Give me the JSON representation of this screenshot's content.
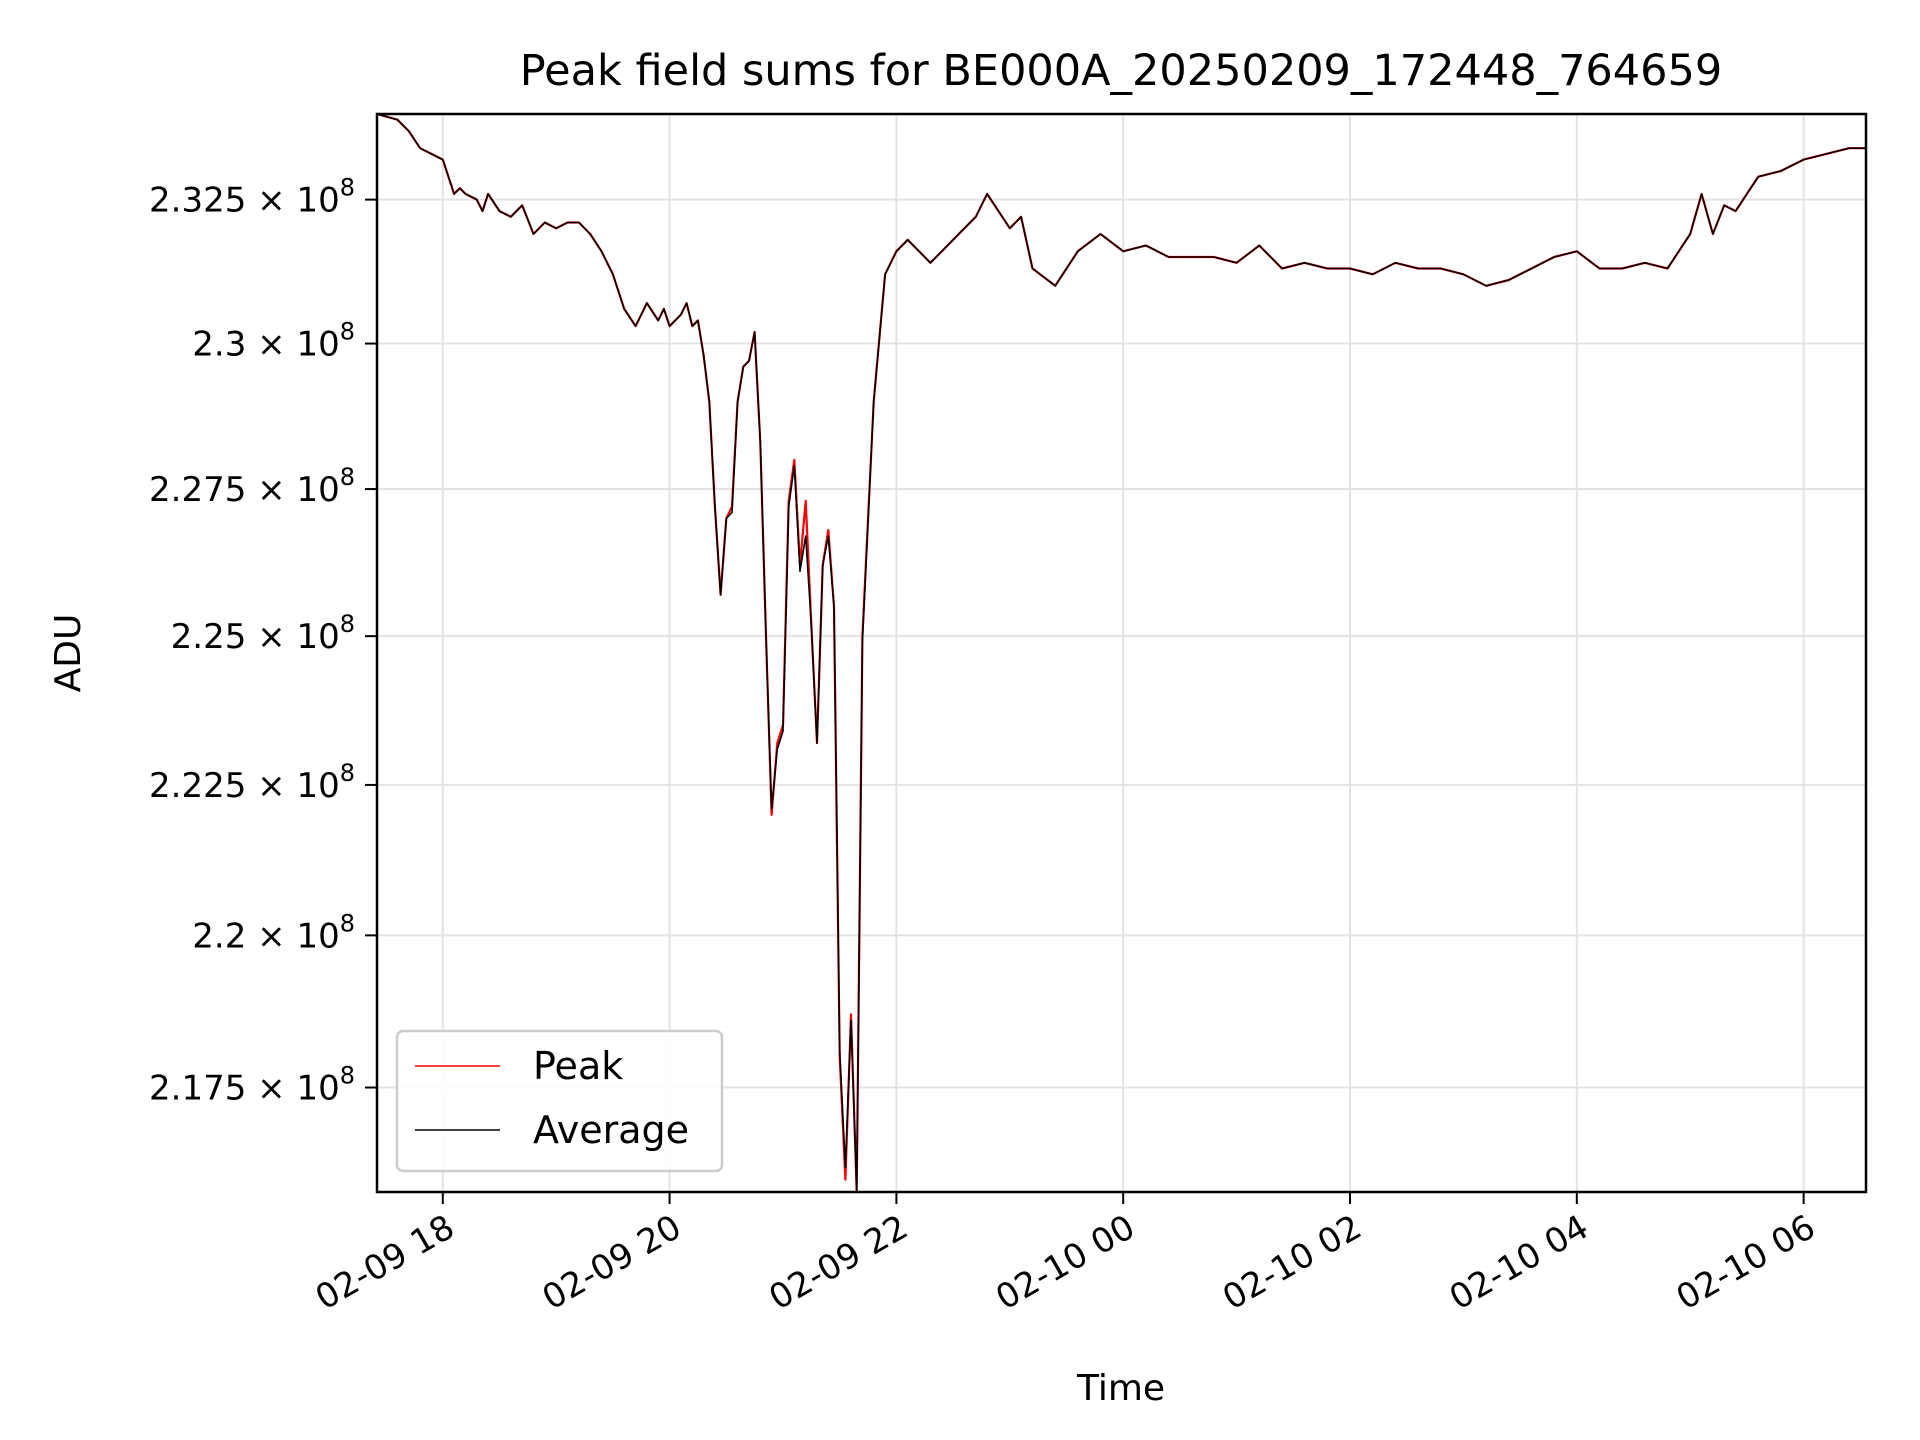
{
  "chart_data": {
    "type": "line",
    "title": "Peak field sums for BE000A_20250209_172448_764659",
    "xlabel": "Time",
    "ylabel": "ADU",
    "x_ticks": [
      "02-09 18",
      "02-09 20",
      "02-09 22",
      "02-10 00",
      "02-10 02",
      "02-10 04",
      "02-10 06"
    ],
    "x_tick_hours": [
      18,
      20,
      22,
      24,
      26,
      28,
      30
    ],
    "xlim_hours": [
      17.42,
      30.55
    ],
    "y_ticks": [
      {
        "value": 232500000.0,
        "mantissa": "2.325",
        "times": "×",
        "base": "10",
        "exponent": "8"
      },
      {
        "value": 230000000.0,
        "mantissa": "2.3",
        "times": "×",
        "base": "10",
        "exponent": "8"
      },
      {
        "value": 227500000.0,
        "mantissa": "2.275",
        "times": "×",
        "base": "10",
        "exponent": "8"
      },
      {
        "value": 225000000.0,
        "mantissa": "2.25",
        "times": "×",
        "base": "10",
        "exponent": "8"
      },
      {
        "value": 222500000.0,
        "mantissa": "2.225",
        "times": "×",
        "base": "10",
        "exponent": "8"
      },
      {
        "value": 220000000.0,
        "mantissa": "2.2",
        "times": "×",
        "base": "10",
        "exponent": "8"
      },
      {
        "value": 217500000.0,
        "mantissa": "2.175",
        "times": "×",
        "base": "10",
        "exponent": "8"
      }
    ],
    "ylim": [
      215800000.0,
      234000000.0
    ],
    "y_scale": "log",
    "grid": true,
    "legend_position": "lower-left",
    "series": [
      {
        "name": "Peak",
        "color": "#ff0000",
        "x_hours": [
          17.42,
          17.6,
          17.7,
          17.8,
          17.9,
          18.0,
          18.1,
          18.15,
          18.2,
          18.3,
          18.35,
          18.4,
          18.5,
          18.6,
          18.7,
          18.8,
          18.9,
          19.0,
          19.1,
          19.2,
          19.3,
          19.4,
          19.5,
          19.6,
          19.7,
          19.8,
          19.9,
          19.95,
          20.0,
          20.05,
          20.1,
          20.15,
          20.2,
          20.25,
          20.3,
          20.35,
          20.4,
          20.45,
          20.5,
          20.55,
          20.6,
          20.65,
          20.7,
          20.75,
          20.8,
          20.85,
          20.9,
          20.95,
          21.0,
          21.05,
          21.1,
          21.15,
          21.2,
          21.25,
          21.3,
          21.35,
          21.4,
          21.45,
          21.5,
          21.55,
          21.6,
          21.65,
          21.7,
          21.8,
          21.9,
          22.0,
          22.1,
          22.2,
          22.3,
          22.4,
          22.5,
          22.6,
          22.7,
          22.8,
          22.9,
          23.0,
          23.1,
          23.2,
          23.4,
          23.6,
          23.8,
          24.0,
          24.2,
          24.4,
          24.6,
          24.8,
          25.0,
          25.2,
          25.4,
          25.6,
          25.8,
          26.0,
          26.2,
          26.4,
          26.6,
          26.8,
          27.0,
          27.2,
          27.4,
          27.6,
          27.8,
          28.0,
          28.2,
          28.4,
          28.6,
          28.8,
          29.0,
          29.1,
          29.2,
          29.3,
          29.4,
          29.5,
          29.6,
          29.8,
          30.0,
          30.2,
          30.4,
          30.55
        ],
        "values": [
          234000000.0,
          233900000.0,
          233700000.0,
          233400000.0,
          233300000.0,
          233200000.0,
          232600000.0,
          232700000.0,
          232600000.0,
          232500000.0,
          232300000.0,
          232600000.0,
          232300000.0,
          232200000.0,
          232400000.0,
          231900000.0,
          232100000.0,
          232000000.0,
          232100000.0,
          232100000.0,
          231900000.0,
          231600000.0,
          231200000.0,
          230600000.0,
          230300000.0,
          230700000.0,
          230400000.0,
          230600000.0,
          230300000.0,
          230400000.0,
          230500000.0,
          230700000.0,
          230300000.0,
          230400000.0,
          229800000.0,
          229000000.0,
          227200000.0,
          225700000.0,
          227000000.0,
          227200000.0,
          229000000.0,
          229600000.0,
          229700000.0,
          230200000.0,
          228300000.0,
          225000000.0,
          222000000.0,
          223200000.0,
          223500000.0,
          227300000.0,
          228000000.0,
          226200000.0,
          227300000.0,
          225200000.0,
          223200000.0,
          226200000.0,
          226800000.0,
          225500000.0,
          218000000.0,
          216000000.0,
          218700000.0,
          215800000.0,
          225000000.0,
          229000000.0,
          231200000.0,
          231600000.0,
          231800000.0,
          231600000.0,
          231400000.0,
          231600000.0,
          231800000.0,
          232000000.0,
          232200000.0,
          232600000.0,
          232300000.0,
          232000000.0,
          232200000.0,
          231300000.0,
          231000000.0,
          231600000.0,
          231900000.0,
          231600000.0,
          231700000.0,
          231500000.0,
          231500000.0,
          231500000.0,
          231400000.0,
          231700000.0,
          231300000.0,
          231400000.0,
          231300000.0,
          231300000.0,
          231200000.0,
          231400000.0,
          231300000.0,
          231300000.0,
          231200000.0,
          231000000.0,
          231100000.0,
          231300000.0,
          231500000.0,
          231600000.0,
          231300000.0,
          231300000.0,
          231400000.0,
          231300000.0,
          231900000.0,
          232600000.0,
          231900000.0,
          232400000.0,
          232300000.0,
          232600000.0,
          232900000.0,
          233000000.0,
          233200000.0,
          233300000.0,
          233400000.0,
          233400000.0
        ]
      },
      {
        "name": "Average",
        "color": "#000000",
        "x_hours": [
          17.42,
          17.6,
          17.7,
          17.8,
          17.9,
          18.0,
          18.1,
          18.15,
          18.2,
          18.3,
          18.35,
          18.4,
          18.5,
          18.6,
          18.7,
          18.8,
          18.9,
          19.0,
          19.1,
          19.2,
          19.3,
          19.4,
          19.5,
          19.6,
          19.7,
          19.8,
          19.9,
          19.95,
          20.0,
          20.05,
          20.1,
          20.15,
          20.2,
          20.25,
          20.3,
          20.35,
          20.4,
          20.45,
          20.5,
          20.55,
          20.6,
          20.65,
          20.7,
          20.75,
          20.8,
          20.85,
          20.9,
          20.95,
          21.0,
          21.05,
          21.1,
          21.15,
          21.2,
          21.25,
          21.3,
          21.35,
          21.4,
          21.45,
          21.5,
          21.55,
          21.6,
          21.65,
          21.7,
          21.8,
          21.9,
          22.0,
          22.1,
          22.2,
          22.3,
          22.4,
          22.5,
          22.6,
          22.7,
          22.8,
          22.9,
          23.0,
          23.1,
          23.2,
          23.4,
          23.6,
          23.8,
          24.0,
          24.2,
          24.4,
          24.6,
          24.8,
          25.0,
          25.2,
          25.4,
          25.6,
          25.8,
          26.0,
          26.2,
          26.4,
          26.6,
          26.8,
          27.0,
          27.2,
          27.4,
          27.6,
          27.8,
          28.0,
          28.2,
          28.4,
          28.6,
          28.8,
          29.0,
          29.1,
          29.2,
          29.3,
          29.4,
          29.5,
          29.6,
          29.8,
          30.0,
          30.2,
          30.4,
          30.55
        ],
        "values": [
          234000000.0,
          233900000.0,
          233700000.0,
          233400000.0,
          233300000.0,
          233200000.0,
          232600000.0,
          232700000.0,
          232600000.0,
          232500000.0,
          232300000.0,
          232600000.0,
          232300000.0,
          232200000.0,
          232400000.0,
          231900000.0,
          232100000.0,
          232000000.0,
          232100000.0,
          232100000.0,
          231900000.0,
          231600000.0,
          231200000.0,
          230600000.0,
          230300000.0,
          230700000.0,
          230400000.0,
          230600000.0,
          230300000.0,
          230400000.0,
          230500000.0,
          230700000.0,
          230300000.0,
          230400000.0,
          229800000.0,
          229000000.0,
          227200000.0,
          225700000.0,
          227000000.0,
          227100000.0,
          229000000.0,
          229600000.0,
          229700000.0,
          230200000.0,
          228300000.0,
          225000000.0,
          222100000.0,
          223100000.0,
          223400000.0,
          227200000.0,
          227900000.0,
          226100000.0,
          226700000.0,
          225200000.0,
          223200000.0,
          226200000.0,
          226700000.0,
          225500000.0,
          218100000.0,
          216200000.0,
          218600000.0,
          215800000.0,
          224900000.0,
          229000000.0,
          231200000.0,
          231600000.0,
          231800000.0,
          231600000.0,
          231400000.0,
          231600000.0,
          231800000.0,
          232000000.0,
          232200000.0,
          232600000.0,
          232300000.0,
          232000000.0,
          232200000.0,
          231300000.0,
          231000000.0,
          231600000.0,
          231900000.0,
          231600000.0,
          231700000.0,
          231500000.0,
          231500000.0,
          231500000.0,
          231400000.0,
          231700000.0,
          231300000.0,
          231400000.0,
          231300000.0,
          231300000.0,
          231200000.0,
          231400000.0,
          231300000.0,
          231300000.0,
          231200000.0,
          231000000.0,
          231100000.0,
          231300000.0,
          231500000.0,
          231600000.0,
          231300000.0,
          231300000.0,
          231400000.0,
          231300000.0,
          231900000.0,
          232600000.0,
          231900000.0,
          232400000.0,
          232300000.0,
          232600000.0,
          232900000.0,
          233000000.0,
          233200000.0,
          233300000.0,
          233400000.0,
          233400000.0
        ]
      }
    ]
  }
}
